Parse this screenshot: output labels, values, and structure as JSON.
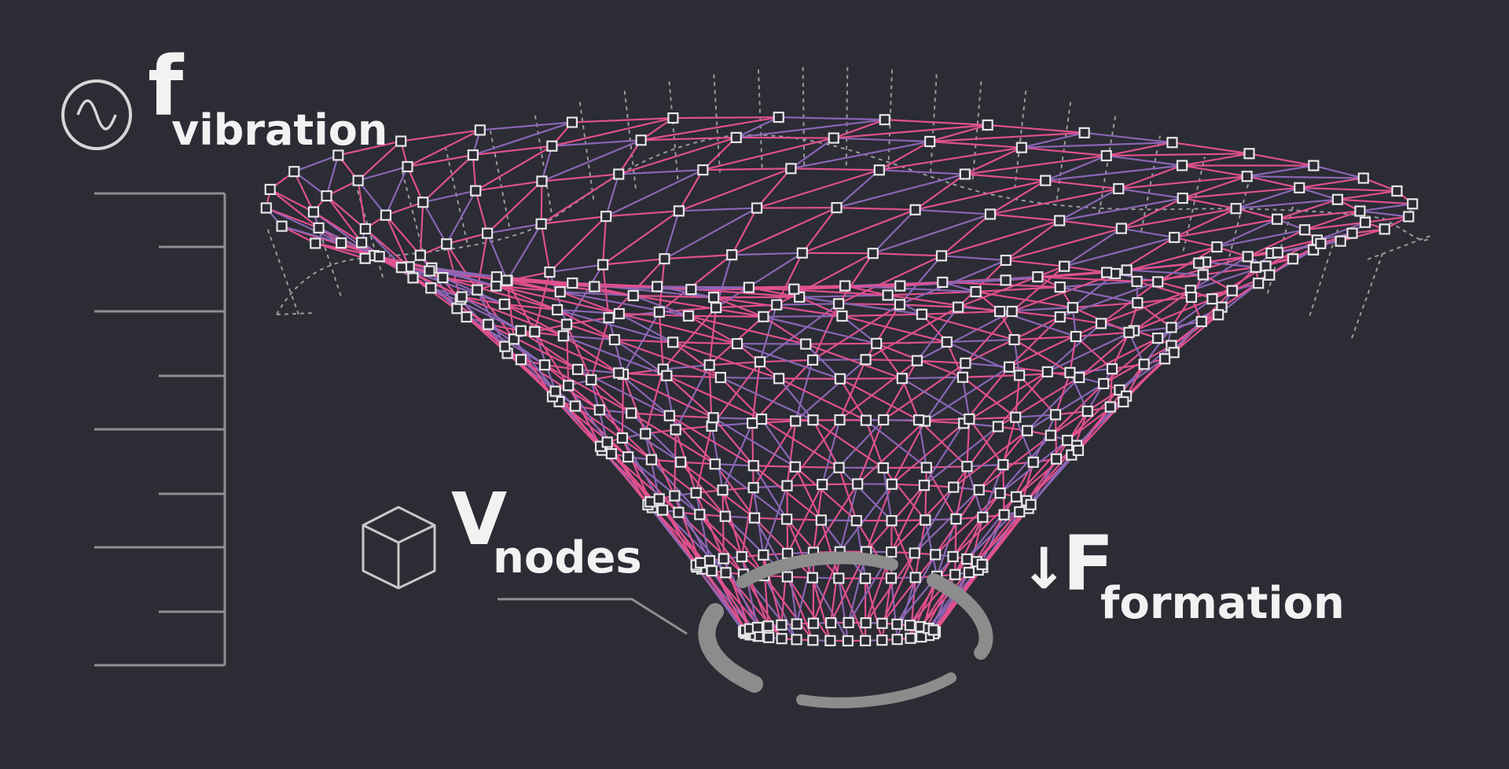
{
  "labels": {
    "vibration": {
      "main": "f",
      "sub": "vibration"
    },
    "nodes": {
      "main": "V",
      "sub": "nodes"
    },
    "formation": {
      "arrow": "↓",
      "main": "F",
      "sub": "formation"
    }
  },
  "icons": {
    "vibration": "sine-wave-circle-icon",
    "nodes": "cube-icon"
  },
  "colors": {
    "background": "#2b2c34",
    "text": "#f2f2f2",
    "mesh_pink": "#e0508f",
    "mesh_purple": "#8a66b5",
    "node_stroke": "#e6e6e6",
    "guide_gray": "#8a8a8a",
    "ring_gray": "#8c8c8c"
  },
  "scale": {
    "major_ticks": 5,
    "minor_ticks": 4
  }
}
